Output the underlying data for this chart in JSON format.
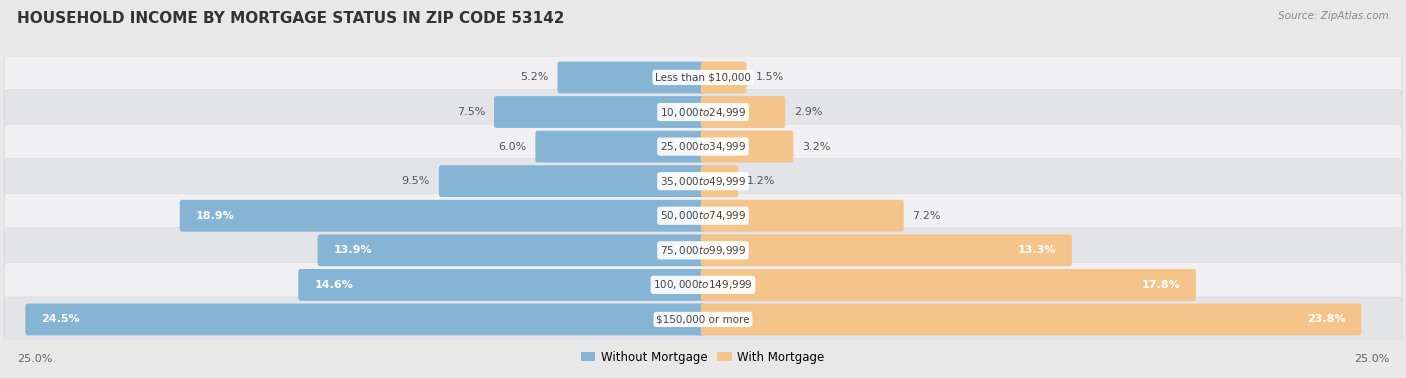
{
  "title": "HOUSEHOLD INCOME BY MORTGAGE STATUS IN ZIP CODE 53142",
  "source": "Source: ZipAtlas.com",
  "categories": [
    "Less than $10,000",
    "$10,000 to $24,999",
    "$25,000 to $34,999",
    "$35,000 to $49,999",
    "$50,000 to $74,999",
    "$75,000 to $99,999",
    "$100,000 to $149,999",
    "$150,000 or more"
  ],
  "without_mortgage": [
    5.2,
    7.5,
    6.0,
    9.5,
    18.9,
    13.9,
    14.6,
    24.5
  ],
  "with_mortgage": [
    1.5,
    2.9,
    3.2,
    1.2,
    7.2,
    13.3,
    17.8,
    23.8
  ],
  "without_mortgage_color": "#85b4d4",
  "with_mortgage_color": "#f5c48a",
  "max_val": 25.0,
  "fig_bg_color": "#e8e8e8",
  "row_colors": [
    "#f0f0f2",
    "#e2e4e8"
  ],
  "title_color": "#333333",
  "source_color": "#888888",
  "label_color_dark": "#555555",
  "label_color_white": "#ffffff",
  "title_fontsize": 11,
  "bar_label_fontsize": 8,
  "cat_label_fontsize": 7.5,
  "axis_label_fontsize": 8,
  "legend_fontsize": 8.5,
  "x_axis_left_label": "25.0%",
  "x_axis_right_label": "25.0%",
  "wom_label_inside_threshold": 12,
  "wm_label_inside_threshold": 12
}
